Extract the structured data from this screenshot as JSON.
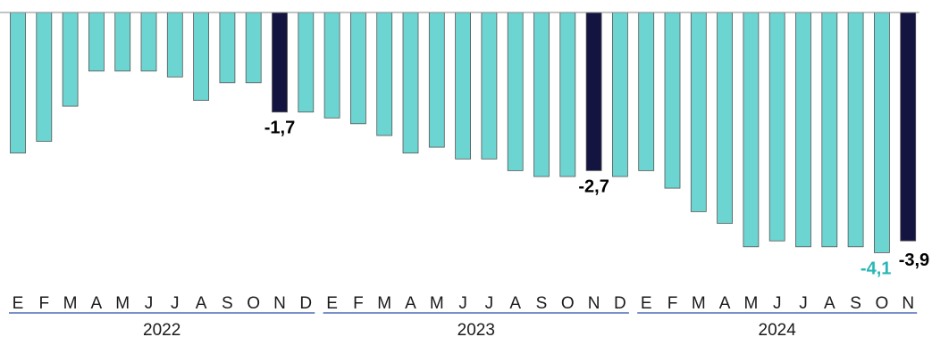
{
  "chart_data": {
    "type": "bar",
    "categories": [
      "E",
      "F",
      "M",
      "A",
      "M",
      "J",
      "J",
      "A",
      "S",
      "O",
      "N",
      "D",
      "E",
      "F",
      "M",
      "A",
      "M",
      "J",
      "J",
      "A",
      "S",
      "O",
      "N",
      "D",
      "E",
      "F",
      "M",
      "A",
      "M",
      "J",
      "J",
      "A",
      "S",
      "O",
      "N"
    ],
    "year_groups": [
      {
        "label": "2022",
        "start": 0,
        "end": 11
      },
      {
        "label": "2023",
        "start": 12,
        "end": 23
      },
      {
        "label": "2024",
        "start": 24,
        "end": 34
      }
    ],
    "values": [
      -2.4,
      -2.2,
      -1.6,
      -1.0,
      -1.0,
      -1.0,
      -1.1,
      -1.5,
      -1.2,
      -1.2,
      -1.7,
      -1.7,
      -1.8,
      -1.9,
      -2.1,
      -2.4,
      -2.3,
      -2.5,
      -2.5,
      -2.7,
      -2.8,
      -2.8,
      -2.7,
      -2.8,
      -2.7,
      -3.0,
      -3.4,
      -3.6,
      -4.0,
      -3.9,
      -4.0,
      -4.0,
      -4.0,
      -4.1,
      -3.9
    ],
    "highlight_indices": [
      10,
      22,
      34
    ],
    "data_labels": [
      {
        "index": 10,
        "text": "-1,7",
        "color": "#000000"
      },
      {
        "index": 22,
        "text": "-2,7",
        "color": "#000000"
      },
      {
        "index": 33,
        "text": "-4,1",
        "color": "#29b6b6"
      },
      {
        "index": 34,
        "text": "-3,9",
        "color": "#000000"
      }
    ],
    "ylim": [
      -4.3,
      0
    ],
    "colors": {
      "bar": "#6dd5d1",
      "bar_edge": "#555555",
      "highlight": "#141440",
      "axis": "#888888",
      "year_line": "#2b4fa8"
    },
    "title": "",
    "xlabel": "",
    "ylabel": ""
  }
}
